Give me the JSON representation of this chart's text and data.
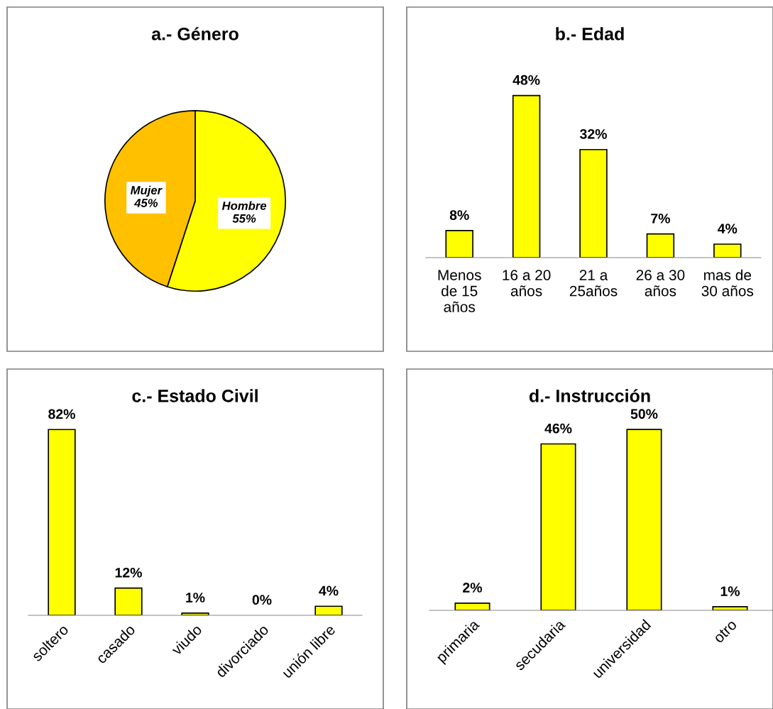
{
  "chart_data": [
    {
      "type": "pie",
      "title": "a.- Género",
      "categories": [
        "Hombre",
        "Mujer"
      ],
      "values": [
        55,
        45
      ],
      "colors": [
        "#ffff00",
        "#ffc000"
      ],
      "value_labels": [
        "55%",
        "45%"
      ]
    },
    {
      "type": "bar",
      "title": "b.- Edad",
      "categories": [
        "Menos\nde 15\naños",
        "16 a 20\naños",
        "21 a\n25años",
        "26 a 30\naños",
        "mas de\n30 años"
      ],
      "values": [
        8,
        48,
        32,
        7,
        4
      ],
      "color": "#ffff00",
      "value_labels": [
        "8%",
        "48%",
        "32%",
        "7%",
        "4%"
      ]
    },
    {
      "type": "bar",
      "title": "c.- Estado Civil",
      "categories": [
        "soltero",
        "casado",
        "viudo",
        "divorciado",
        "unión libre"
      ],
      "values": [
        82,
        12,
        1,
        0,
        4
      ],
      "color": "#ffff00",
      "value_labels": [
        "82%",
        "12%",
        "1%",
        "0%",
        "4%"
      ]
    },
    {
      "type": "bar",
      "title": "d.- Instrucción",
      "categories": [
        "primaria",
        "secudaria",
        "universidad",
        "otro"
      ],
      "values": [
        2,
        46,
        50,
        1
      ],
      "color": "#ffff00",
      "value_labels": [
        "2%",
        "46%",
        "50%",
        "1%"
      ]
    }
  ]
}
